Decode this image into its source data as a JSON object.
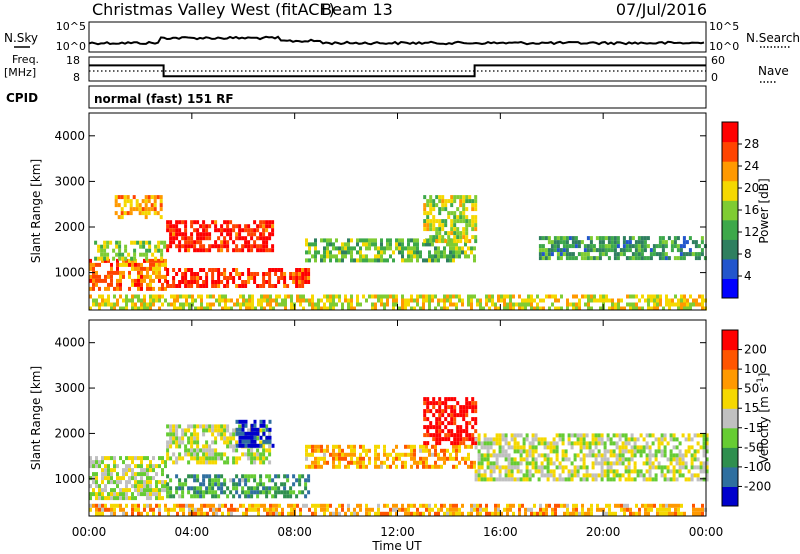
{
  "header": {
    "station": "Christmas Valley West (fitACF)",
    "beam": "Beam 13",
    "date": "07/Jul/2016"
  },
  "strip": {
    "nsky_label": "N.Sky",
    "nsky_ticks": [
      "10^5",
      "10^0"
    ],
    "nsearch_label": "N.Search",
    "nsearch_ticks": [
      "10^5",
      "10^0"
    ],
    "freq_label": "Freq.",
    "freq_unit": "[MHz]",
    "freq_ticks": [
      "18",
      "8"
    ],
    "nave_label": "Nave",
    "nave_ticks": [
      "60",
      "0"
    ],
    "cpid_label": "CPID",
    "cpid_text": "normal (fast) 151 RF",
    "freq_steps": [
      {
        "from_hour": 0,
        "to_hour": 2.9,
        "mhz": 14.5
      },
      {
        "from_hour": 2.9,
        "to_hour": 15.0,
        "mhz": 10.0
      },
      {
        "from_hour": 15.0,
        "to_hour": 24,
        "mhz": 14.5
      }
    ]
  },
  "chart_data": [
    {
      "type": "heatmap",
      "title": "",
      "xlabel": "",
      "ylabel": "Slant Range [km]",
      "xlim_hours": [
        0,
        24
      ],
      "ylim": [
        180,
        4500
      ],
      "yticks": [
        "1000",
        "2000",
        "3000",
        "4000"
      ],
      "colorbar_label": "Power [dB]",
      "colorbar_ticks": [
        "4",
        "8",
        "12",
        "16",
        "20",
        "24",
        "28"
      ],
      "colorscale": [
        "#0000ff",
        "#2255cc",
        "#2f7f5f",
        "#3da84a",
        "#7fcc33",
        "#f5d800",
        "#ff9900",
        "#ff4400",
        "#ff0000"
      ],
      "echo_regions": [
        {
          "hour_start": 0.0,
          "hour_end": 3.0,
          "range_start": 650,
          "range_end": 1300,
          "level": 0.78
        },
        {
          "hour_start": 3.0,
          "hour_end": 8.6,
          "range_start": 700,
          "range_end": 1100,
          "level": 0.88
        },
        {
          "hour_start": 3.0,
          "hour_end": 7.2,
          "range_start": 1450,
          "range_end": 2150,
          "level": 0.92
        },
        {
          "hour_start": 0.2,
          "hour_end": 3.0,
          "range_start": 1300,
          "range_end": 1700,
          "level": 0.5
        },
        {
          "hour_start": 8.4,
          "hour_end": 15.0,
          "range_start": 1300,
          "range_end": 1750,
          "level": 0.45
        },
        {
          "hour_start": 13.0,
          "hour_end": 15.0,
          "range_start": 1700,
          "range_end": 2700,
          "level": 0.55
        },
        {
          "hour_start": 17.5,
          "hour_end": 24.0,
          "range_start": 1300,
          "range_end": 1800,
          "level": 0.35
        },
        {
          "hour_start": 1.0,
          "hour_end": 2.8,
          "range_start": 2200,
          "range_end": 2700,
          "level": 0.7
        },
        {
          "hour_start": 0.0,
          "hour_end": 24.0,
          "range_start": 200,
          "range_end": 520,
          "level": 0.6
        }
      ]
    },
    {
      "type": "heatmap",
      "title": "",
      "xlabel": "Time UT",
      "ylabel": "Slant Range [km]",
      "xlim_hours": [
        0,
        24
      ],
      "ylim": [
        180,
        4500
      ],
      "yticks": [
        "1000",
        "2000",
        "3000",
        "4000"
      ],
      "xticks": [
        "00:00",
        "04:00",
        "08:00",
        "12:00",
        "16:00",
        "20:00",
        "00:00"
      ],
      "colorbar_label": "Velocity [m s^-1]",
      "colorbar_ticks": [
        "200",
        "100",
        "50",
        "15",
        "-15",
        "-50",
        "-100",
        "-200"
      ],
      "colorscale": [
        "#0000cc",
        "#2f6f9f",
        "#2f8f4f",
        "#66cc33",
        "#c0c0c0",
        "#f5d800",
        "#ff9900",
        "#ff5500",
        "#ff0000"
      ],
      "echo_regions": [
        {
          "hour_start": 0.0,
          "hour_end": 3.0,
          "range_start": 600,
          "range_end": 1500,
          "level": 0.5
        },
        {
          "hour_start": 3.0,
          "hour_end": 8.6,
          "range_start": 600,
          "range_end": 1100,
          "level": 0.3
        },
        {
          "hour_start": 3.0,
          "hour_end": 7.0,
          "range_start": 1400,
          "range_end": 2200,
          "level": 0.5
        },
        {
          "hour_start": 5.7,
          "hour_end": 7.2,
          "range_start": 1700,
          "range_end": 2300,
          "level": 0.05
        },
        {
          "hour_start": 8.4,
          "hour_end": 15.0,
          "range_start": 1300,
          "range_end": 1750,
          "level": 0.7
        },
        {
          "hour_start": 13.0,
          "hour_end": 15.0,
          "range_start": 1800,
          "range_end": 2800,
          "level": 0.98
        },
        {
          "hour_start": 15.0,
          "hour_end": 24.0,
          "range_start": 1000,
          "range_end": 2000,
          "level": 0.5
        },
        {
          "hour_start": 0.0,
          "hour_end": 24.0,
          "range_start": 200,
          "range_end": 450,
          "level": 0.68
        }
      ]
    }
  ]
}
